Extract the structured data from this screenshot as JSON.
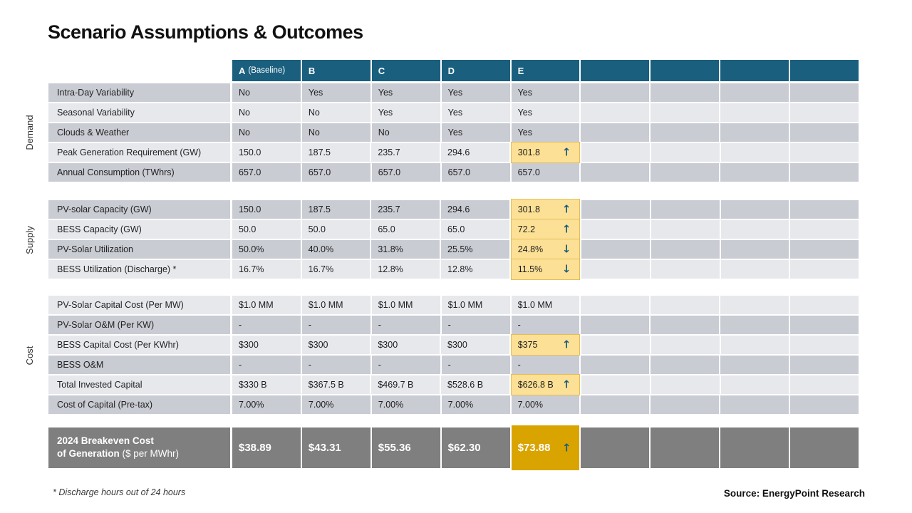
{
  "title": "Scenario Assumptions & Outcomes",
  "columns": [
    {
      "label": "A",
      "suffix": "(Baseline)"
    },
    {
      "label": "B"
    },
    {
      "label": "C"
    },
    {
      "label": "D"
    },
    {
      "label": "E"
    },
    {
      "label": ""
    },
    {
      "label": ""
    },
    {
      "label": ""
    },
    {
      "label": ""
    }
  ],
  "sections": [
    {
      "name": "Demand",
      "first_shade": "dark",
      "rows": [
        {
          "label": "Intra-Day Variability",
          "values": [
            "No",
            "Yes",
            "Yes",
            "Yes",
            "Yes"
          ],
          "highlight_col": null,
          "arrow": null
        },
        {
          "label": "Seasonal Variability",
          "values": [
            "No",
            "No",
            "Yes",
            "Yes",
            "Yes"
          ],
          "highlight_col": null,
          "arrow": null
        },
        {
          "label": "Clouds & Weather",
          "values": [
            "No",
            "No",
            "No",
            "Yes",
            "Yes"
          ],
          "highlight_col": null,
          "arrow": null
        },
        {
          "label": "Peak Generation Requirement (GW)",
          "values": [
            "150.0",
            "187.5",
            "235.7",
            "294.6",
            "301.8"
          ],
          "highlight_col": 4,
          "arrow": "up"
        },
        {
          "label": "Annual Consumption (TWhrs)",
          "values": [
            "657.0",
            "657.0",
            "657.0",
            "657.0",
            "657.0"
          ],
          "highlight_col": null,
          "arrow": null
        }
      ]
    },
    {
      "name": "Supply",
      "first_shade": "dark",
      "rows": [
        {
          "label": "PV-solar Capacity (GW)",
          "values": [
            "150.0",
            "187.5",
            "235.7",
            "294.6",
            "301.8"
          ],
          "highlight_col": 4,
          "arrow": "up"
        },
        {
          "label": "BESS Capacity (GW)",
          "values": [
            "50.0",
            "50.0",
            "65.0",
            "65.0",
            "72.2"
          ],
          "highlight_col": 4,
          "arrow": "up"
        },
        {
          "label": "PV-Solar Utilization",
          "values": [
            "50.0%",
            "40.0%",
            "31.8%",
            "25.5%",
            "24.8%"
          ],
          "highlight_col": 4,
          "arrow": "down"
        },
        {
          "label": "BESS Utilization (Discharge) *",
          "values": [
            "16.7%",
            "16.7%",
            "12.8%",
            "12.8%",
            "11.5%"
          ],
          "highlight_col": 4,
          "arrow": "down"
        }
      ]
    },
    {
      "name": "Cost",
      "first_shade": "light",
      "rows": [
        {
          "label": "PV-Solar Capital Cost (Per MW)",
          "values": [
            "$1.0 MM",
            "$1.0 MM",
            "$1.0 MM",
            "$1.0 MM",
            "$1.0 MM"
          ],
          "highlight_col": null,
          "arrow": null
        },
        {
          "label": "PV-Solar O&M (Per KW)",
          "values": [
            "-",
            "-",
            "-",
            "-",
            "-"
          ],
          "highlight_col": null,
          "arrow": null
        },
        {
          "label": "BESS Capital Cost (Per KWhr)",
          "values": [
            "$300",
            "$300",
            "$300",
            "$300",
            "$375"
          ],
          "highlight_col": 4,
          "arrow": "up"
        },
        {
          "label": "BESS O&M",
          "values": [
            "-",
            "-",
            "-",
            "-",
            "-"
          ],
          "highlight_col": null,
          "arrow": null
        },
        {
          "label": "Total Invested Capital",
          "values": [
            "$330 B",
            "$367.5 B",
            "$469.7 B",
            "$528.6 B",
            "$626.8 B"
          ],
          "highlight_col": 4,
          "arrow": "up"
        },
        {
          "label": "Cost of Capital (Pre-tax)",
          "values": [
            "7.00%",
            "7.00%",
            "7.00%",
            "7.00%",
            "7.00%"
          ],
          "highlight_col": null,
          "arrow": null
        }
      ]
    }
  ],
  "breakeven": {
    "label_line1": "2024 Breakeven Cost",
    "label_line2_bold": "of Generation",
    "label_line2_normal": " ($ per MWhr)",
    "values": [
      "$38.89",
      "$43.31",
      "$55.36",
      "$62.30",
      "$73.88"
    ],
    "highlight_col": 4,
    "arrow": "up"
  },
  "footnote": "* Discharge hours out of 24 hours",
  "source": "Source: EnergyPoint Research",
  "colors": {
    "header_teal": "#1A5F7E",
    "stripe_dark": "#CACCD4",
    "stripe_light": "#E6E8EC",
    "highlight_yellow": "#FCE095",
    "highlight_border": "#E3BE58",
    "breakeven_gray": "#7F7F7F",
    "breakeven_gold": "#D9A400",
    "arrow_teal": "#1B5E7D"
  },
  "glyphs": {
    "up": "↑",
    "down": "↓"
  }
}
